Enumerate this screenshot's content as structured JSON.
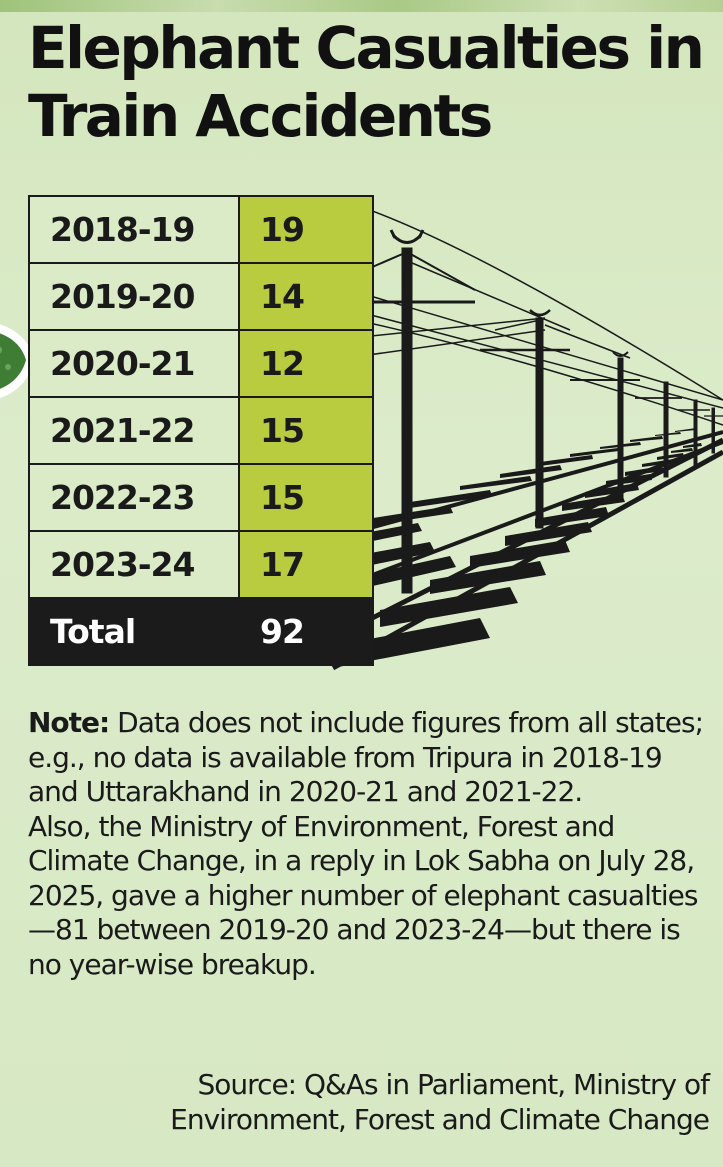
{
  "title": {
    "line1": "Elephant Casualties in",
    "line2": "Train Accidents"
  },
  "chart_data": {
    "type": "table",
    "categories": [
      "2018-19",
      "2019-20",
      "2020-21",
      "2021-22",
      "2022-23",
      "2023-24"
    ],
    "values": [
      19,
      14,
      12,
      15,
      15,
      17
    ],
    "total_label": "Total",
    "total_value": 92
  },
  "note": {
    "label": "Note:",
    "para1": "Data does not include figures from all states; e.g., no data is available from Tripura in 2018-19 and Uttarakhand in 2020-21 and 2021-22.",
    "para2": "Also, the Ministry of Environment, Forest and Climate Change, in a reply in Lok Sabha on July 28, 2025, gave a higher number of elephant casualties—81 between 2019-20 and 2023-24—but there is no year-wise breakup."
  },
  "source": {
    "line1": "Source: Q&As in Parliament, Ministry of",
    "line2": "Environment, Forest and Climate Change"
  },
  "colors": {
    "background": "#d8e8c4",
    "value_cell": "#b9cb3f",
    "total_row": "#1b1b1b"
  }
}
